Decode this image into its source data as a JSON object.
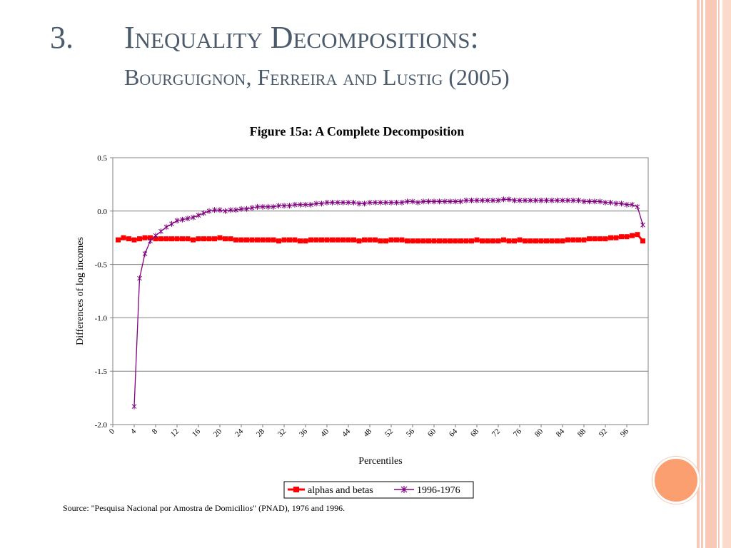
{
  "slide": {
    "number": "3.",
    "title": "Inequality Decompositions:",
    "subtitle": "Bourguignon, Ferreira and Lustig (2005)",
    "source": "Source: \"Pesquisa Nacional por Amostra de Domicilios\" (PNAD), 1976 and 1996."
  },
  "colors": {
    "title": "#4c5b6b",
    "series_alphas": "#ff0000",
    "series_diff": "#800080",
    "accent_circle": "#fb9f71",
    "stripes": "#f7c9b6"
  },
  "chart_data": {
    "type": "line",
    "title": "Figure 15a: A Complete Decomposition",
    "xlabel": "Percentiles",
    "ylabel": "Differences of log incomes",
    "ylim": [
      -2.0,
      0.5
    ],
    "yticks": [
      "0.5",
      "0.0",
      "-0.5",
      "-1.0",
      "-1.5",
      "-2.0"
    ],
    "xticks": [
      "0",
      "4",
      "8",
      "12",
      "16",
      "20",
      "24",
      "28",
      "32",
      "36",
      "40",
      "44",
      "48",
      "52",
      "56",
      "60",
      "64",
      "68",
      "72",
      "76",
      "80",
      "84",
      "88",
      "92",
      "96"
    ],
    "grid": true,
    "legend": "bottom",
    "series": [
      {
        "name": "alphas and betas",
        "marker": "square",
        "x": [
          1,
          2,
          3,
          4,
          5,
          6,
          7,
          8,
          9,
          10,
          11,
          12,
          13,
          14,
          15,
          16,
          17,
          18,
          19,
          20,
          21,
          22,
          23,
          24,
          25,
          26,
          27,
          28,
          29,
          30,
          31,
          32,
          33,
          34,
          35,
          36,
          37,
          38,
          39,
          40,
          41,
          42,
          43,
          44,
          45,
          46,
          47,
          48,
          49,
          50,
          51,
          52,
          53,
          54,
          55,
          56,
          57,
          58,
          59,
          60,
          61,
          62,
          63,
          64,
          65,
          66,
          67,
          68,
          69,
          70,
          71,
          72,
          73,
          74,
          75,
          76,
          77,
          78,
          79,
          80,
          81,
          82,
          83,
          84,
          85,
          86,
          87,
          88,
          89,
          90,
          91,
          92,
          93,
          94,
          95,
          96,
          97,
          98,
          99
        ],
        "values": [
          -0.27,
          -0.25,
          -0.26,
          -0.27,
          -0.26,
          -0.25,
          -0.25,
          -0.26,
          -0.26,
          -0.26,
          -0.26,
          -0.26,
          -0.26,
          -0.26,
          -0.27,
          -0.26,
          -0.26,
          -0.26,
          -0.26,
          -0.25,
          -0.26,
          -0.26,
          -0.27,
          -0.27,
          -0.27,
          -0.27,
          -0.27,
          -0.27,
          -0.27,
          -0.27,
          -0.28,
          -0.27,
          -0.27,
          -0.27,
          -0.28,
          -0.28,
          -0.27,
          -0.27,
          -0.27,
          -0.27,
          -0.27,
          -0.27,
          -0.27,
          -0.27,
          -0.27,
          -0.28,
          -0.27,
          -0.27,
          -0.27,
          -0.28,
          -0.28,
          -0.27,
          -0.27,
          -0.27,
          -0.28,
          -0.28,
          -0.28,
          -0.28,
          -0.28,
          -0.28,
          -0.28,
          -0.28,
          -0.28,
          -0.28,
          -0.28,
          -0.28,
          -0.28,
          -0.27,
          -0.28,
          -0.28,
          -0.28,
          -0.28,
          -0.27,
          -0.28,
          -0.28,
          -0.27,
          -0.28,
          -0.28,
          -0.28,
          -0.28,
          -0.28,
          -0.28,
          -0.28,
          -0.28,
          -0.27,
          -0.27,
          -0.27,
          -0.27,
          -0.26,
          -0.26,
          -0.26,
          -0.26,
          -0.25,
          -0.25,
          -0.24,
          -0.24,
          -0.23,
          -0.22,
          -0.28
        ]
      },
      {
        "name": "1996-1976",
        "marker": "star",
        "x": [
          4,
          5,
          6,
          7,
          8,
          9,
          10,
          11,
          12,
          13,
          14,
          15,
          16,
          17,
          18,
          19,
          20,
          21,
          22,
          23,
          24,
          25,
          26,
          27,
          28,
          29,
          30,
          31,
          32,
          33,
          34,
          35,
          36,
          37,
          38,
          39,
          40,
          41,
          42,
          43,
          44,
          45,
          46,
          47,
          48,
          49,
          50,
          51,
          52,
          53,
          54,
          55,
          56,
          57,
          58,
          59,
          60,
          61,
          62,
          63,
          64,
          65,
          66,
          67,
          68,
          69,
          70,
          71,
          72,
          73,
          74,
          75,
          76,
          77,
          78,
          79,
          80,
          81,
          82,
          83,
          84,
          85,
          86,
          87,
          88,
          89,
          90,
          91,
          92,
          93,
          94,
          95,
          96,
          97,
          98,
          99
        ],
        "values": [
          -1.83,
          -0.63,
          -0.4,
          -0.28,
          -0.23,
          -0.19,
          -0.15,
          -0.12,
          -0.09,
          -0.08,
          -0.07,
          -0.06,
          -0.04,
          -0.02,
          0.0,
          0.01,
          0.01,
          0.0,
          0.01,
          0.01,
          0.02,
          0.02,
          0.03,
          0.04,
          0.04,
          0.04,
          0.04,
          0.05,
          0.05,
          0.05,
          0.06,
          0.06,
          0.06,
          0.06,
          0.07,
          0.07,
          0.08,
          0.08,
          0.08,
          0.08,
          0.08,
          0.08,
          0.07,
          0.07,
          0.08,
          0.08,
          0.08,
          0.08,
          0.08,
          0.08,
          0.08,
          0.09,
          0.09,
          0.08,
          0.09,
          0.09,
          0.09,
          0.09,
          0.09,
          0.09,
          0.09,
          0.09,
          0.1,
          0.1,
          0.1,
          0.1,
          0.1,
          0.1,
          0.1,
          0.11,
          0.11,
          0.1,
          0.1,
          0.1,
          0.1,
          0.1,
          0.1,
          0.1,
          0.1,
          0.1,
          0.1,
          0.1,
          0.1,
          0.1,
          0.09,
          0.09,
          0.09,
          0.09,
          0.08,
          0.08,
          0.07,
          0.07,
          0.06,
          0.06,
          0.04,
          -0.13
        ]
      }
    ]
  }
}
